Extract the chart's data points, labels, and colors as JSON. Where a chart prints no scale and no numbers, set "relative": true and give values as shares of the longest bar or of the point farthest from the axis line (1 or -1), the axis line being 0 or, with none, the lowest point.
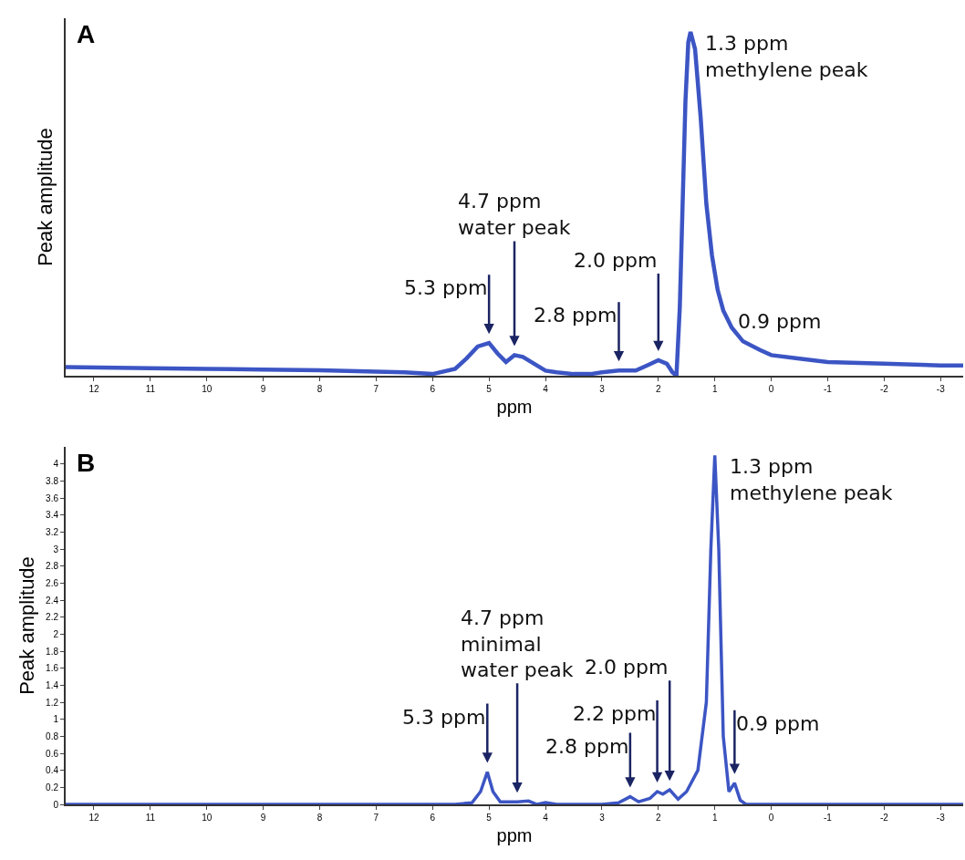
{
  "chart_data": [
    {
      "type": "line",
      "title": "A",
      "xlabel": "ppm",
      "ylabel": "Peak amplitude",
      "relative": true,
      "xlim": [
        12.5,
        -3.4
      ],
      "xticks": [
        12,
        11,
        10,
        9,
        8,
        7,
        6,
        5,
        4,
        3,
        2,
        1,
        0,
        {
          "value": -1,
          "label": "-1"
        },
        {
          "value": -2,
          "label": "-2"
        },
        {
          "value": -3,
          "label": "-3"
        }
      ],
      "grid": false,
      "marker": "none",
      "line_style": "solid",
      "series": [
        {
          "color": "#3c55c4",
          "x": [
            12.5,
            11,
            10,
            9,
            8,
            7,
            6.5,
            6,
            5.6,
            5.4,
            5.2,
            5.0,
            4.85,
            4.7,
            4.55,
            4.4,
            4.2,
            4.0,
            3.8,
            3.5,
            3.2,
            3.0,
            2.7,
            2.4,
            2.2,
            2.0,
            1.85,
            1.75,
            1.68,
            1.62,
            1.57,
            1.52,
            1.47,
            1.43,
            1.35,
            1.25,
            1.15,
            1.05,
            0.95,
            0.85,
            0.7,
            0.5,
            0.2,
            0,
            -0.5,
            -1,
            -2,
            -3,
            -3.4
          ],
          "values": [
            0.025,
            0.022,
            0.02,
            0.018,
            0.016,
            0.012,
            0.01,
            0.005,
            0.02,
            0.05,
            0.085,
            0.095,
            0.065,
            0.04,
            0.06,
            0.055,
            0.035,
            0.015,
            0.01,
            0.005,
            0.005,
            0.01,
            0.015,
            0.015,
            0.03,
            0.045,
            0.035,
            0.01,
            0,
            0.2,
            0.5,
            0.8,
            0.97,
            1,
            0.95,
            0.75,
            0.5,
            0.35,
            0.25,
            0.19,
            0.14,
            0.1,
            0.075,
            0.06,
            0.05,
            0.04,
            0.035,
            0.03,
            0.03
          ]
        }
      ],
      "annotations": [
        {
          "text": "5.3 ppm",
          "x": 5.0,
          "y": 0.095
        },
        {
          "text": "4.7 ppm\nwater peak",
          "x": 4.55,
          "y": 0.06
        },
        {
          "text": "2.8 ppm",
          "x": 2.7,
          "y": 0.015
        },
        {
          "text": "2.0 ppm",
          "x": 2.0,
          "y": 0.045
        },
        {
          "text": "1.3 ppm\nmethylene peak",
          "x": 1.43,
          "y": 1
        },
        {
          "text": "0.9 ppm",
          "x": 0.85,
          "y": 0.19
        }
      ]
    },
    {
      "type": "line",
      "title": "B",
      "xlabel": "ppm",
      "ylabel": "Peak amplitude",
      "xlim": [
        12.5,
        -3.4
      ],
      "xticks": [
        12,
        11,
        10,
        9,
        8,
        7,
        6,
        5,
        4,
        3,
        2,
        1,
        0,
        {
          "value": -1,
          "label": "-1"
        },
        {
          "value": -2,
          "label": "-2"
        },
        {
          "value": -3,
          "label": "-3"
        }
      ],
      "ylim": [
        0,
        4.2
      ],
      "yticks": [
        0,
        0.2,
        0.4,
        0.6,
        0.8,
        1,
        1.2,
        1.4,
        1.6,
        1.8,
        2,
        2.2,
        2.4,
        2.6,
        2.8,
        3,
        3.2,
        3.4,
        3.6,
        3.8,
        4
      ],
      "grid": false,
      "marker": "none",
      "line_style": "solid",
      "series": [
        {
          "color": "#3c55c4",
          "x": [
            12.5,
            10,
            8,
            6,
            5.6,
            5.3,
            5.15,
            5.03,
            4.93,
            4.8,
            4.5,
            4.3,
            4.15,
            4.0,
            3.8,
            3.0,
            2.7,
            2.5,
            2.35,
            2.15,
            2.02,
            1.92,
            1.8,
            1.65,
            1.5,
            1.3,
            1.15,
            1.07,
            1.0,
            0.93,
            0.85,
            0.75,
            0.65,
            0.55,
            0.45,
            -1,
            -3.4
          ],
          "values": [
            0,
            0,
            0,
            0,
            0,
            0.02,
            0.15,
            0.38,
            0.15,
            0.03,
            0.03,
            0.04,
            0,
            0.02,
            0,
            0,
            0.02,
            0.09,
            0.03,
            0.07,
            0.15,
            0.12,
            0.17,
            0.06,
            0.15,
            0.4,
            1.2,
            3,
            4.1,
            3,
            0.8,
            0.15,
            0.25,
            0.05,
            0,
            0,
            0
          ]
        }
      ],
      "annotations": [
        {
          "text": "5.3 ppm",
          "x": 5.03,
          "y": 0.38
        },
        {
          "text": "4.7 ppm\nminimal\nwater peak",
          "x": 4.5,
          "y": 0.03
        },
        {
          "text": "2.8 ppm",
          "x": 2.5,
          "y": 0.09
        },
        {
          "text": "2.2 ppm",
          "x": 2.02,
          "y": 0.15
        },
        {
          "text": "2.0 ppm",
          "x": 1.8,
          "y": 0.17
        },
        {
          "text": "1.3 ppm\nmethylene peak",
          "x": 1.0,
          "y": 4.1
        },
        {
          "text": "0.9 ppm",
          "x": 0.65,
          "y": 0.25
        }
      ]
    }
  ]
}
